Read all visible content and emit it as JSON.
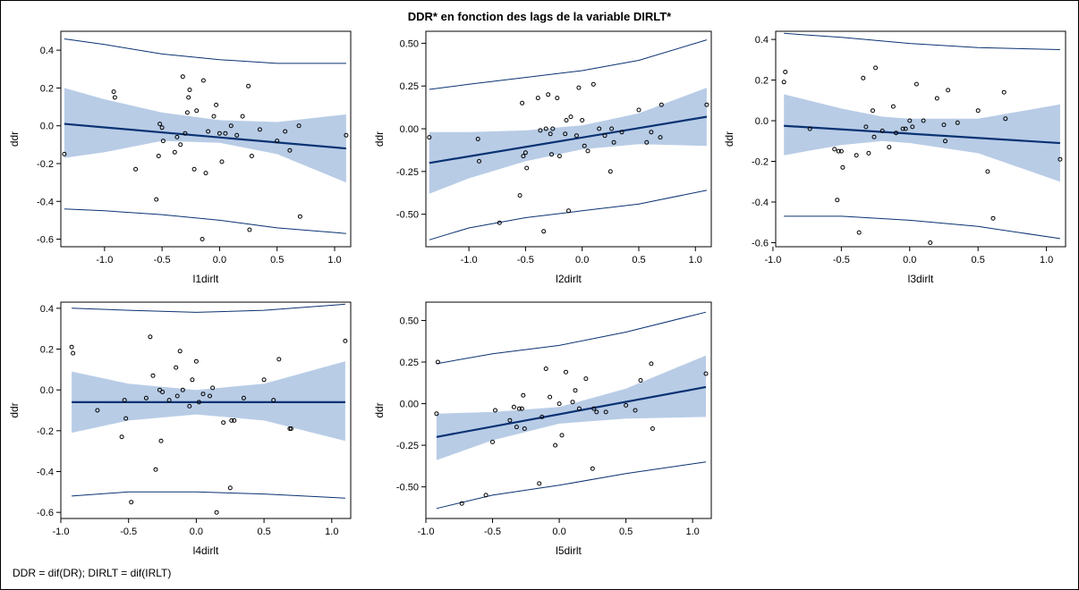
{
  "title": "DDR* en fonction des lags de la variable DIRLT*",
  "footnote": "DDR = dif(DR); DIRLT = dif(IRLT)",
  "colors": {
    "fit_line": "#0a3272",
    "confidence_band": "#b8cce6",
    "prediction_limits": "#0a3272",
    "points": "#000000"
  },
  "chart_data": [
    {
      "type": "scatter",
      "xlabel": "l1dirlt",
      "ylabel": "ddr",
      "xlim": [
        -1.38,
        1.14
      ],
      "ylim": [
        -0.64,
        0.5
      ],
      "xticks": [
        -1.0,
        -0.5,
        0.0,
        0.5,
        1.0
      ],
      "xtick_labels": [
        "-1.0",
        "-0.5",
        "0.0",
        "0.5",
        "1.0"
      ],
      "yticks": [
        -0.6,
        -0.4,
        -0.2,
        0.0,
        0.2,
        0.4
      ],
      "ytick_labels": [
        "-0.6",
        "-0.4",
        "-0.2",
        "0.0",
        "0.2",
        "0.4"
      ],
      "fit": {
        "x": [
          -1.35,
          1.1
        ],
        "y": [
          0.01,
          -0.12
        ]
      },
      "confidence_band": {
        "x": [
          -1.35,
          -1.0,
          -0.5,
          0.0,
          0.5,
          1.1
        ],
        "upper": [
          0.2,
          0.14,
          0.07,
          0.03,
          0.02,
          0.06
        ],
        "lower": [
          -0.17,
          -0.14,
          -0.08,
          -0.09,
          -0.15,
          -0.3
        ]
      },
      "prediction_limits": {
        "x": [
          -1.35,
          -1.0,
          -0.5,
          0.0,
          0.5,
          1.1
        ],
        "upper": [
          0.46,
          0.43,
          0.38,
          0.35,
          0.33,
          0.33
        ],
        "lower": [
          -0.44,
          -0.45,
          -0.47,
          -0.5,
          -0.54,
          -0.57
        ]
      },
      "points": {
        "x": [
          -1.35,
          -0.92,
          -0.91,
          -0.73,
          -0.55,
          -0.53,
          -0.52,
          -0.5,
          -0.49,
          -0.39,
          -0.37,
          -0.34,
          -0.32,
          -0.3,
          -0.28,
          -0.27,
          -0.26,
          -0.22,
          -0.2,
          -0.15,
          -0.14,
          -0.12,
          -0.1,
          -0.05,
          -0.03,
          0.0,
          0.02,
          0.05,
          0.1,
          0.15,
          0.2,
          0.25,
          0.26,
          0.28,
          0.35,
          0.5,
          0.57,
          0.61,
          0.69,
          0.7,
          1.1
        ],
        "y": [
          -0.15,
          0.18,
          0.15,
          -0.23,
          -0.39,
          -0.16,
          0.01,
          -0.01,
          -0.08,
          -0.14,
          -0.06,
          -0.1,
          0.26,
          -0.04,
          0.07,
          0.15,
          0.19,
          -0.23,
          0.08,
          -0.6,
          0.24,
          -0.25,
          -0.03,
          0.05,
          0.11,
          -0.04,
          -0.19,
          -0.04,
          0.0,
          -0.05,
          0.05,
          0.21,
          -0.55,
          -0.16,
          -0.02,
          -0.08,
          -0.03,
          -0.13,
          0.0,
          -0.48,
          -0.05
        ]
      }
    },
    {
      "type": "scatter",
      "xlabel": "l2dirlt",
      "ylabel": "ddr",
      "xlim": [
        -1.38,
        1.14
      ],
      "ylim": [
        -0.69,
        0.57
      ],
      "xticks": [
        -1.0,
        -0.5,
        0.0,
        0.5,
        1.0
      ],
      "xtick_labels": [
        "-1.0",
        "-0.5",
        "0.0",
        "0.5",
        "1.0"
      ],
      "yticks": [
        -0.5,
        -0.25,
        0.0,
        0.25,
        0.5
      ],
      "ytick_labels": [
        "-0.50",
        "-0.25",
        "0.00",
        "0.25",
        "0.50"
      ],
      "fit": {
        "x": [
          -1.35,
          1.1
        ],
        "y": [
          -0.2,
          0.07
        ]
      },
      "confidence_band": {
        "x": [
          -1.35,
          -1.0,
          -0.5,
          0.0,
          0.5,
          1.1
        ],
        "upper": [
          -0.02,
          -0.02,
          -0.01,
          0.02,
          0.09,
          0.24
        ],
        "lower": [
          -0.38,
          -0.29,
          -0.19,
          -0.12,
          -0.09,
          -0.1
        ]
      },
      "prediction_limits": {
        "x": [
          -1.35,
          -1.0,
          -0.5,
          0.0,
          0.5,
          1.1
        ],
        "upper": [
          0.23,
          0.26,
          0.3,
          0.34,
          0.4,
          0.52
        ],
        "lower": [
          -0.65,
          -0.58,
          -0.52,
          -0.48,
          -0.44,
          -0.36
        ]
      },
      "points": {
        "x": [
          -1.35,
          -0.92,
          -0.91,
          -0.73,
          -0.55,
          -0.53,
          -0.52,
          -0.5,
          -0.49,
          -0.39,
          -0.37,
          -0.34,
          -0.32,
          -0.3,
          -0.28,
          -0.27,
          -0.26,
          -0.22,
          -0.2,
          -0.15,
          -0.14,
          -0.12,
          -0.1,
          -0.05,
          -0.03,
          0.0,
          0.02,
          0.05,
          0.1,
          0.15,
          0.2,
          0.25,
          0.26,
          0.28,
          0.35,
          0.5,
          0.57,
          0.61,
          0.69,
          0.7,
          1.1
        ],
        "y": [
          -0.05,
          -0.06,
          -0.19,
          -0.55,
          -0.39,
          0.15,
          -0.16,
          -0.14,
          -0.23,
          0.18,
          -0.01,
          -0.6,
          0.0,
          0.2,
          -0.03,
          -0.15,
          0.0,
          0.18,
          -0.16,
          -0.03,
          0.05,
          -0.48,
          0.07,
          -0.04,
          0.24,
          0.05,
          -0.1,
          -0.13,
          0.26,
          0.0,
          -0.04,
          -0.25,
          0.0,
          -0.08,
          -0.02,
          0.11,
          -0.08,
          -0.02,
          -0.05,
          0.14,
          0.14
        ]
      }
    },
    {
      "type": "scatter",
      "xlabel": "l3dirlt",
      "ylabel": "ddr",
      "xlim": [
        -0.98,
        1.14
      ],
      "ylim": [
        -0.62,
        0.44
      ],
      "xticks": [
        -1.0,
        -0.5,
        0.0,
        0.5,
        1.0
      ],
      "xtick_labels": [
        "-1.0",
        "-0.5",
        "0.0",
        "0.5",
        "1.0"
      ],
      "yticks": [
        -0.6,
        -0.4,
        -0.2,
        0.0,
        0.2,
        0.4
      ],
      "ytick_labels": [
        "-0.6",
        "-0.4",
        "-0.2",
        "0.0",
        "0.2",
        "0.4"
      ],
      "fit": {
        "x": [
          -0.92,
          1.1
        ],
        "y": [
          -0.025,
          -0.11
        ]
      },
      "confidence_band": {
        "x": [
          -0.92,
          -0.5,
          -0.2,
          0.0,
          0.5,
          1.1
        ],
        "upper": [
          0.13,
          0.06,
          0.02,
          0.01,
          0.01,
          0.08
        ],
        "lower": [
          -0.17,
          -0.12,
          -0.1,
          -0.11,
          -0.16,
          -0.3
        ]
      },
      "prediction_limits": {
        "x": [
          -0.92,
          -0.5,
          0.0,
          0.5,
          1.1
        ],
        "upper": [
          0.43,
          0.41,
          0.38,
          0.36,
          0.35
        ],
        "lower": [
          -0.47,
          -0.47,
          -0.49,
          -0.52,
          -0.58
        ]
      },
      "points": {
        "x": [
          -0.92,
          -0.91,
          -0.73,
          -0.55,
          -0.53,
          -0.52,
          -0.5,
          -0.49,
          -0.39,
          -0.37,
          -0.34,
          -0.32,
          -0.3,
          -0.27,
          -0.26,
          -0.25,
          -0.2,
          -0.15,
          -0.12,
          -0.1,
          -0.05,
          -0.03,
          0.0,
          0.02,
          0.05,
          0.1,
          0.15,
          0.2,
          0.25,
          0.26,
          0.28,
          0.35,
          0.5,
          0.57,
          0.61,
          0.69,
          0.7,
          1.1
        ],
        "y": [
          0.19,
          0.24,
          -0.04,
          -0.14,
          -0.39,
          -0.15,
          -0.15,
          -0.23,
          -0.17,
          -0.55,
          0.21,
          -0.03,
          -0.16,
          0.05,
          -0.08,
          0.26,
          -0.05,
          -0.13,
          0.07,
          -0.06,
          -0.04,
          -0.04,
          0.0,
          -0.03,
          0.18,
          0.0,
          -0.6,
          0.11,
          -0.02,
          -0.1,
          0.15,
          -0.01,
          0.05,
          -0.25,
          -0.48,
          0.14,
          0.01,
          -0.19
        ]
      }
    },
    {
      "type": "scatter",
      "xlabel": "l4dirlt",
      "ylabel": "ddr",
      "xlim": [
        -1.0,
        1.14
      ],
      "ylim": [
        -0.63,
        0.43
      ],
      "xticks": [
        -1.0,
        -0.5,
        0.0,
        0.5,
        1.0
      ],
      "xtick_labels": [
        "-1.0",
        "-0.5",
        "0.0",
        "0.5",
        "1.0"
      ],
      "yticks": [
        -0.6,
        -0.4,
        -0.2,
        0.0,
        0.2,
        0.4
      ],
      "ytick_labels": [
        "-0.6",
        "-0.4",
        "-0.2",
        "0.0",
        "0.2",
        "0.4"
      ],
      "fit": {
        "x": [
          -0.92,
          1.1
        ],
        "y": [
          -0.06,
          -0.06
        ]
      },
      "confidence_band": {
        "x": [
          -0.92,
          -0.5,
          0.0,
          0.5,
          1.1
        ],
        "upper": [
          0.09,
          0.03,
          0.0,
          0.03,
          0.14
        ],
        "lower": [
          -0.21,
          -0.15,
          -0.12,
          -0.15,
          -0.25
        ]
      },
      "prediction_limits": {
        "x": [
          -0.92,
          -0.5,
          0.0,
          0.5,
          1.1
        ],
        "upper": [
          0.4,
          0.39,
          0.38,
          0.39,
          0.42
        ],
        "lower": [
          -0.52,
          -0.5,
          -0.5,
          -0.51,
          -0.53
        ]
      },
      "points": {
        "x": [
          -0.92,
          -0.91,
          -0.73,
          -0.55,
          -0.53,
          -0.52,
          -0.48,
          -0.37,
          -0.34,
          -0.32,
          -0.3,
          -0.27,
          -0.26,
          -0.25,
          -0.2,
          -0.15,
          -0.14,
          -0.12,
          -0.1,
          -0.05,
          -0.03,
          0.0,
          0.02,
          0.05,
          0.1,
          0.12,
          0.15,
          0.2,
          0.25,
          0.26,
          0.28,
          0.35,
          0.5,
          0.57,
          0.61,
          0.69,
          0.7,
          1.1
        ],
        "y": [
          0.21,
          0.18,
          -0.1,
          -0.23,
          -0.05,
          -0.14,
          -0.55,
          -0.04,
          0.26,
          0.07,
          -0.39,
          -0.0,
          -0.25,
          -0.01,
          -0.05,
          0.11,
          -0.03,
          0.19,
          0.0,
          -0.08,
          0.05,
          0.14,
          -0.06,
          -0.02,
          -0.03,
          0.01,
          -0.6,
          -0.16,
          -0.48,
          -0.15,
          -0.15,
          -0.04,
          0.05,
          -0.05,
          0.15,
          -0.19,
          -0.19,
          0.24
        ]
      }
    },
    {
      "type": "scatter",
      "xlabel": "l5dirlt",
      "ylabel": "ddr",
      "xlim": [
        -1.0,
        1.14
      ],
      "ylim": [
        -0.69,
        0.61
      ],
      "xticks": [
        -1.0,
        -0.5,
        0.0,
        0.5,
        1.0
      ],
      "xtick_labels": [
        "-1.0",
        "-0.5",
        "0.0",
        "0.5",
        "1.0"
      ],
      "yticks": [
        -0.5,
        -0.25,
        0.0,
        0.25,
        0.5
      ],
      "ytick_labels": [
        "-0.50",
        "-0.25",
        "0.00",
        "0.25",
        "0.50"
      ],
      "fit": {
        "x": [
          -0.92,
          1.1
        ],
        "y": [
          -0.2,
          0.1
        ]
      },
      "confidence_band": {
        "x": [
          -0.92,
          -0.5,
          0.0,
          0.5,
          1.1
        ],
        "upper": [
          -0.06,
          -0.05,
          -0.02,
          0.09,
          0.29
        ],
        "lower": [
          -0.34,
          -0.22,
          -0.12,
          -0.09,
          -0.08
        ]
      },
      "prediction_limits": {
        "x": [
          -0.92,
          -0.5,
          0.0,
          0.5,
          1.1
        ],
        "upper": [
          0.24,
          0.3,
          0.35,
          0.43,
          0.55
        ],
        "lower": [
          -0.63,
          -0.55,
          -0.49,
          -0.42,
          -0.35
        ]
      },
      "points": {
        "x": [
          -0.92,
          -0.91,
          -0.73,
          -0.55,
          -0.5,
          -0.48,
          -0.37,
          -0.34,
          -0.32,
          -0.3,
          -0.28,
          -0.27,
          -0.26,
          -0.15,
          -0.13,
          -0.1,
          -0.07,
          -0.03,
          0.0,
          0.02,
          0.05,
          0.1,
          0.12,
          0.15,
          0.2,
          0.25,
          0.26,
          0.28,
          0.35,
          0.5,
          0.57,
          0.61,
          0.69,
          0.7,
          1.1
        ],
        "y": [
          -0.06,
          0.25,
          -0.6,
          -0.55,
          -0.23,
          -0.04,
          -0.1,
          -0.02,
          -0.14,
          -0.03,
          -0.03,
          0.05,
          -0.15,
          -0.48,
          -0.08,
          0.21,
          0.04,
          -0.25,
          0.0,
          -0.19,
          0.19,
          0.01,
          0.08,
          -0.03,
          0.15,
          -0.39,
          -0.03,
          -0.05,
          -0.05,
          -0.01,
          -0.04,
          0.14,
          0.24,
          -0.15,
          0.18
        ]
      }
    }
  ]
}
